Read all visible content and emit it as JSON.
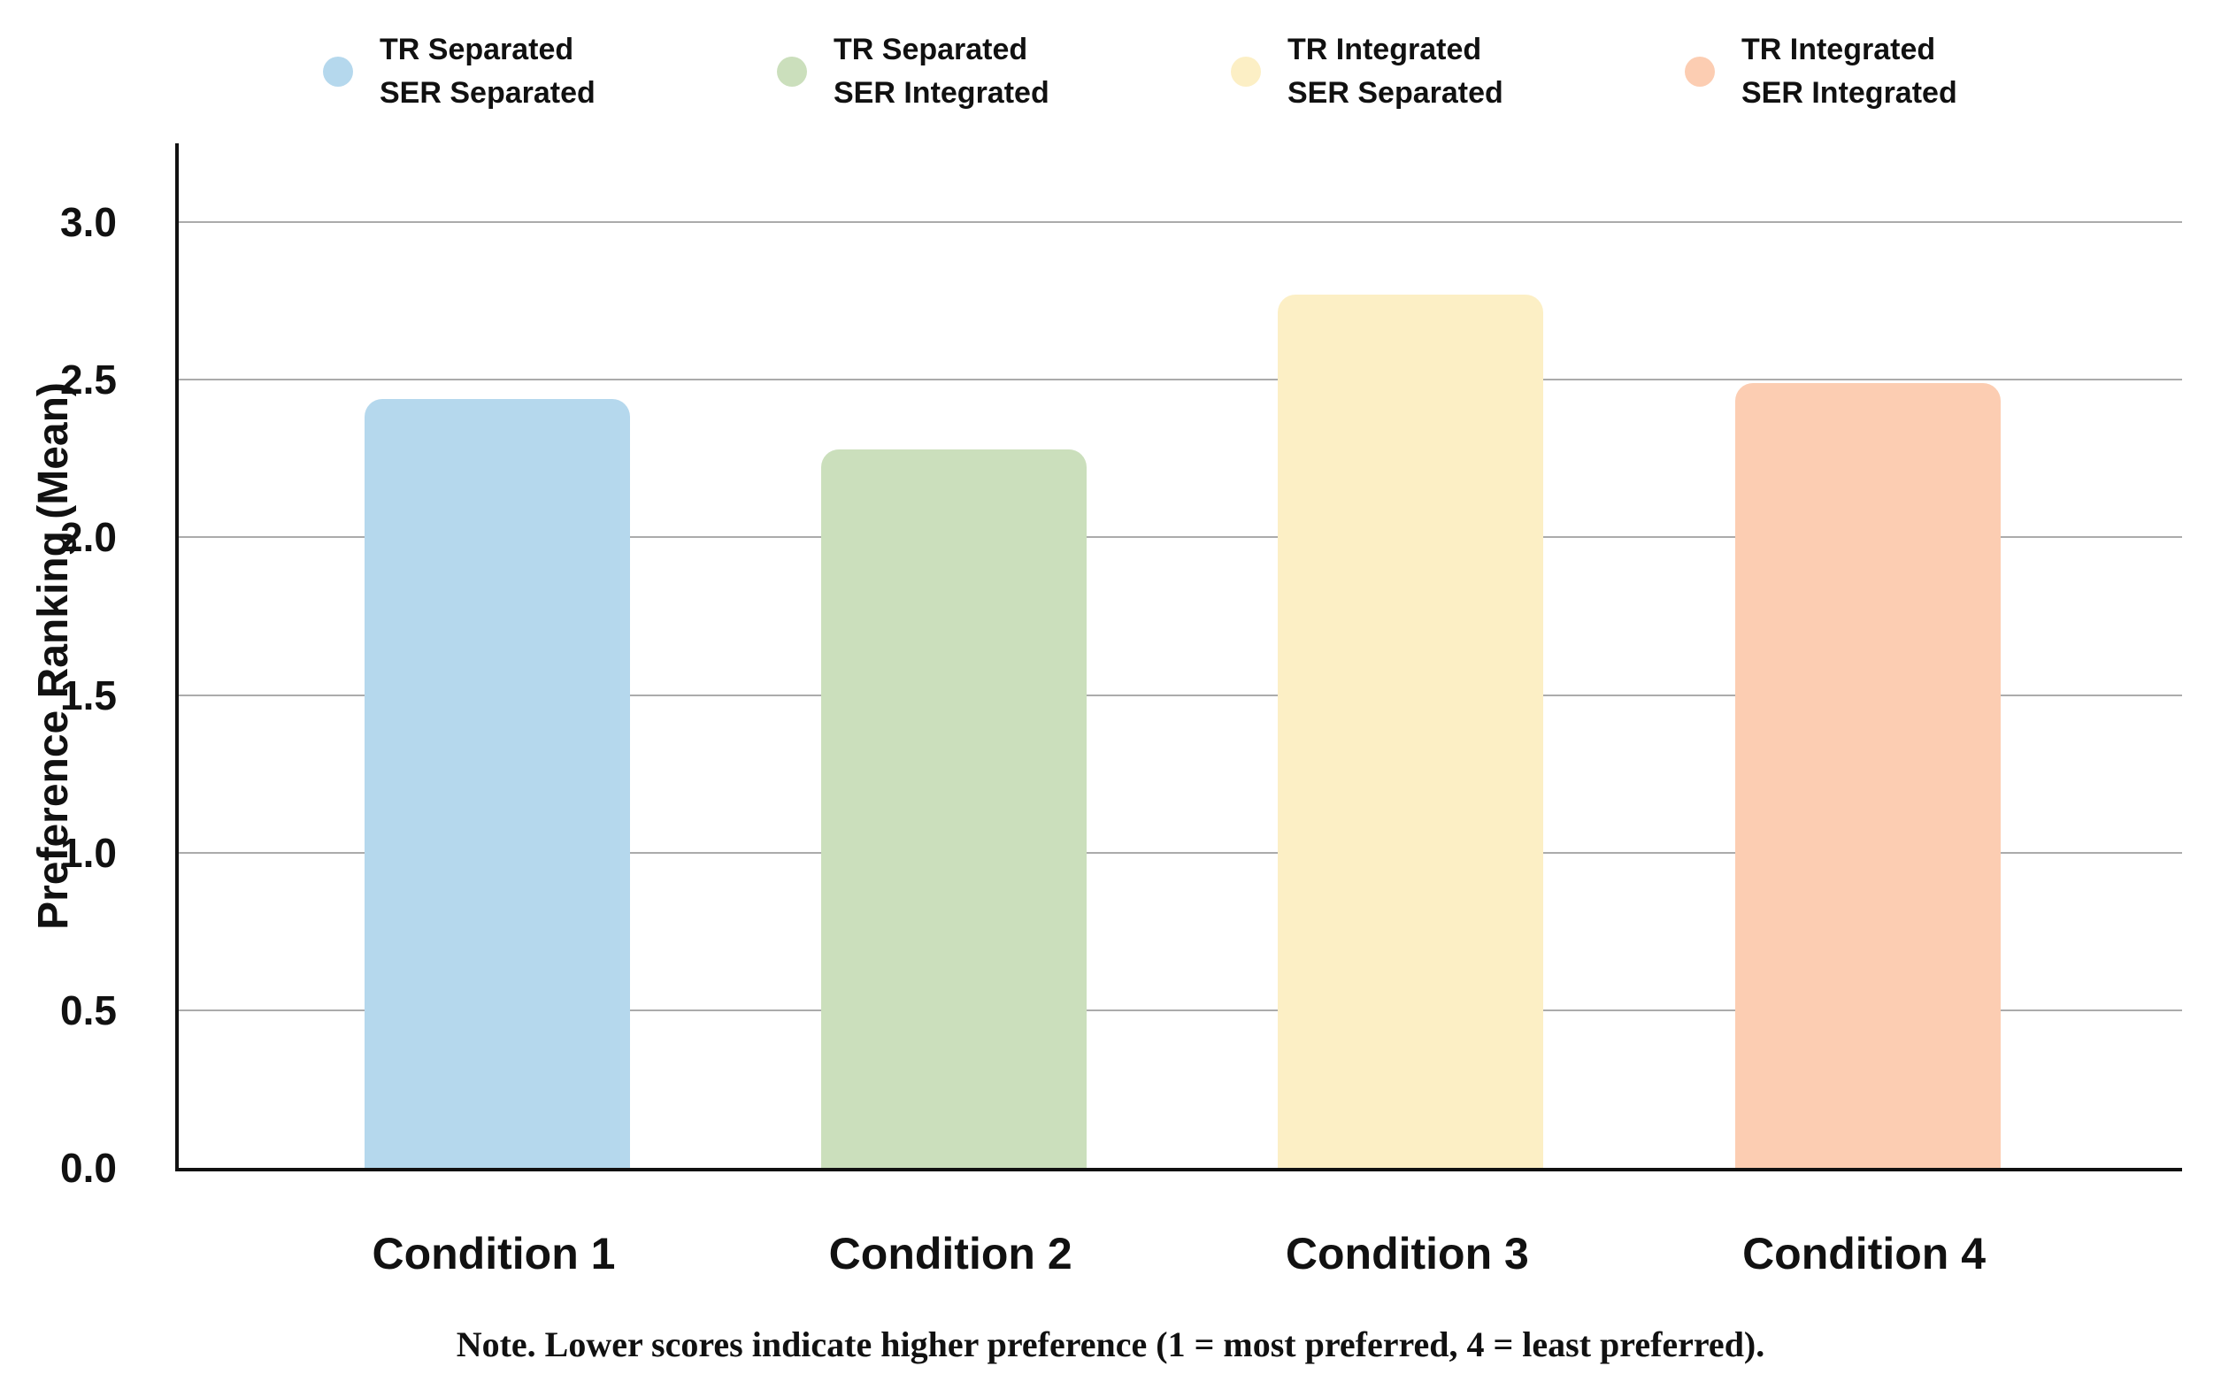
{
  "note": "Note. Lower scores indicate higher preference (1 = most preferred, 4 = least preferred).",
  "colors": {
    "background": "#ffffff",
    "axis": "#111111",
    "gridline": "#ababab",
    "text": "#111111"
  },
  "chart_data": {
    "type": "bar",
    "title": "",
    "xlabel": "",
    "ylabel": "Preference Ranking (Mean)",
    "categories": [
      "Condition 1",
      "Condition 2",
      "Condition 3",
      "Condition 4"
    ],
    "values": [
      2.44,
      2.28,
      2.77,
      2.49
    ],
    "bar_colors": [
      "#B5D8ED",
      "#CBDFBC",
      "#FCEFC5",
      "#FCCDB2"
    ],
    "ylim": [
      0,
      3.25
    ],
    "yticks": [
      0.0,
      0.5,
      1.0,
      1.5,
      2.0,
      2.5,
      3.0
    ],
    "ytick_labels": [
      "0.0",
      "0.5",
      "1.0",
      "1.5",
      "2.0",
      "2.5",
      "3.0"
    ],
    "grid": "horizontal-gridlines-on",
    "legend_position": "top",
    "legend": [
      {
        "line1": "TR Separated",
        "line2": "SER Separated",
        "color": "#B5D8ED"
      },
      {
        "line1": "TR Separated",
        "line2": "SER Integrated",
        "color": "#CBDFBC"
      },
      {
        "line1": "TR Integrated",
        "line2": "SER Separated",
        "color": "#FCEFC5"
      },
      {
        "line1": "TR Integrated",
        "line2": "SER Integrated",
        "color": "#FCCDB2"
      }
    ]
  }
}
